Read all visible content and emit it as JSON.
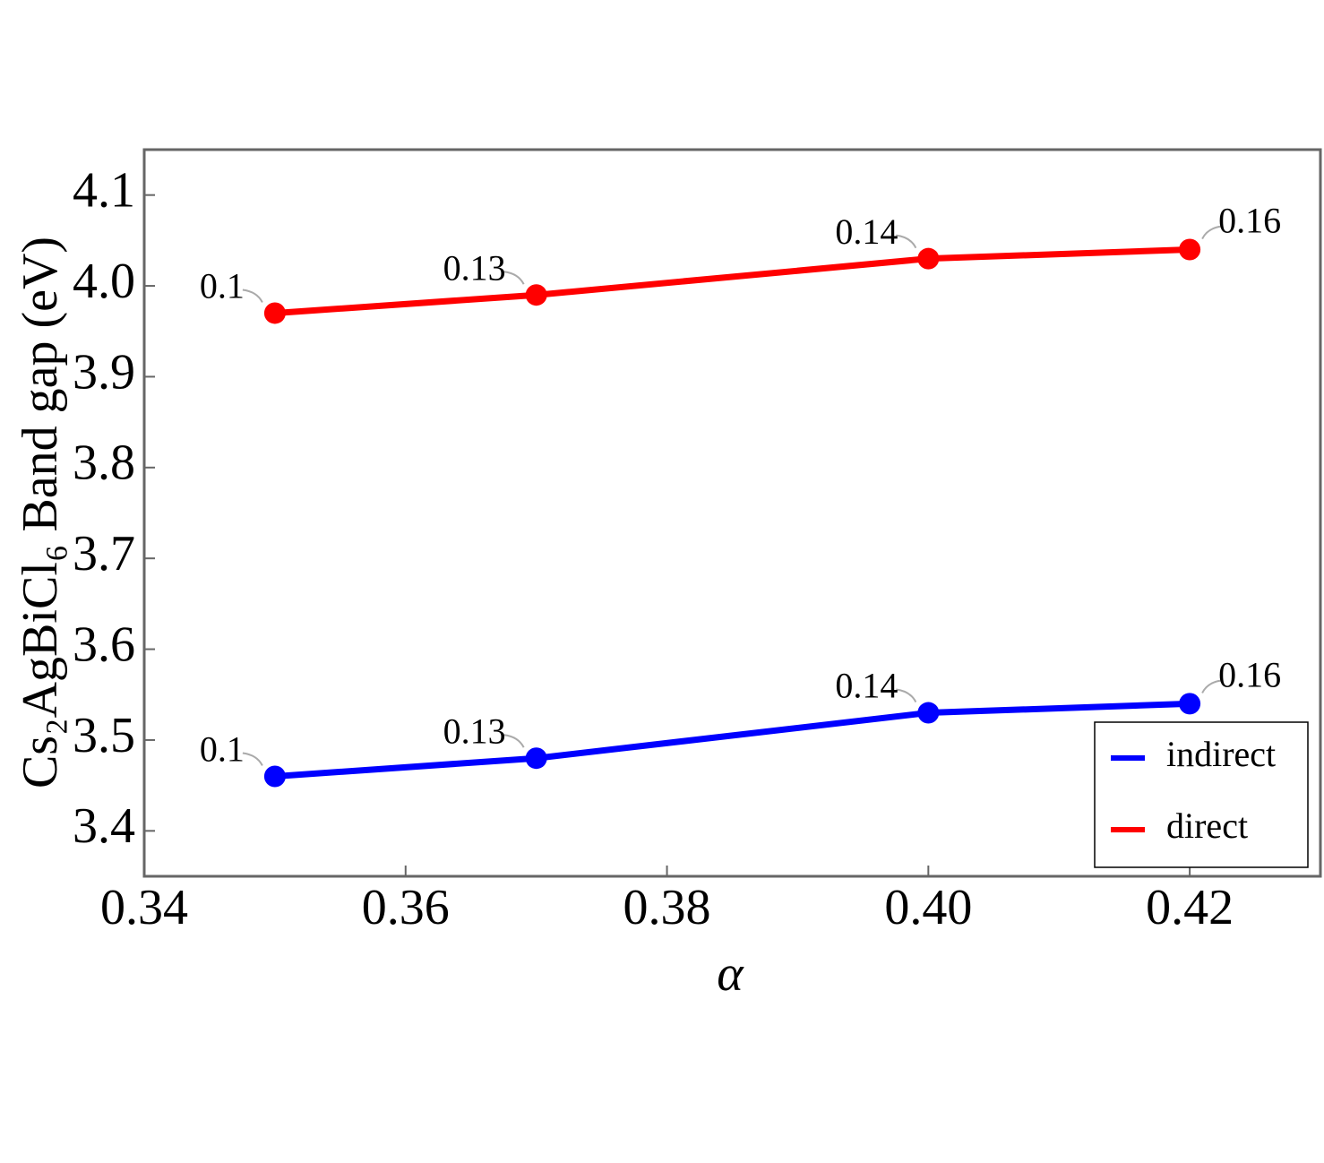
{
  "chart_data": {
    "type": "line",
    "xlabel": "α",
    "ylabel": "Cs₂AgBiCl₆ Band gap (eV)",
    "x": [
      0.35,
      0.37,
      0.4,
      0.42
    ],
    "series": [
      {
        "name": "indirect",
        "color": "#0000ff",
        "values": [
          3.46,
          3.48,
          3.53,
          3.54
        ],
        "point_labels": [
          "0.1",
          "0.13",
          "0.14",
          "0.16"
        ]
      },
      {
        "name": "direct",
        "color": "#ff0000",
        "values": [
          3.97,
          3.99,
          4.03,
          4.04
        ],
        "point_labels": [
          "0.1",
          "0.13",
          "0.14",
          "0.16"
        ]
      }
    ],
    "xlim": [
      0.34,
      0.43
    ],
    "xticks": [
      0.34,
      0.36,
      0.38,
      {
        "value": 0.4,
        "label": "0.40"
      },
      0.42
    ],
    "ylim": [
      3.35,
      4.15
    ],
    "yticks": [
      3.4,
      3.5,
      3.6,
      3.7,
      3.8,
      3.9,
      {
        "value": 4,
        "label": "4.0"
      },
      4.1
    ],
    "legend": "lower-right"
  }
}
